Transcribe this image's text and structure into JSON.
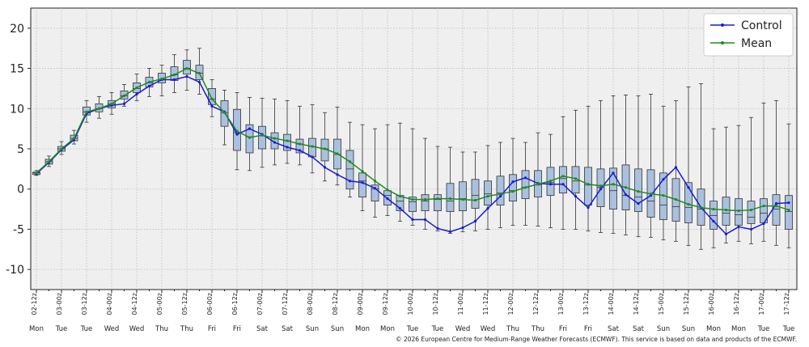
{
  "chart_data": {
    "type": "box",
    "categories": [
      "02-12z",
      null,
      "03-00z",
      null,
      "03-12z",
      null,
      "04-00z",
      null,
      "04-12z",
      null,
      "05-00z",
      null,
      "05-12z",
      null,
      "06-00z",
      null,
      "06-12z",
      null,
      "07-00z",
      null,
      "07-12z",
      null,
      "08-00z",
      null,
      "08-12z",
      null,
      "09-00z",
      null,
      "09-12z",
      null,
      "10-00z",
      null,
      "10-12z",
      null,
      "11-00z",
      null,
      "11-12z",
      null,
      "12-00z",
      null,
      "12-12z",
      null,
      "13-00z",
      null,
      "13-12z",
      null,
      "14-00z",
      null,
      "14-12z",
      null,
      "15-00z",
      null,
      "15-12z",
      null,
      "16-00z",
      null,
      "16-12z",
      null,
      "17-00z",
      null,
      "17-12z"
    ],
    "day_labels": [
      "Mon",
      null,
      "Tue",
      null,
      "Tue",
      null,
      "Wed",
      null,
      "Wed",
      null,
      "Thu",
      null,
      "Thu",
      null,
      "Fri",
      null,
      "Fri",
      null,
      "Sat",
      null,
      "Sat",
      null,
      "Sun",
      null,
      "Sun",
      null,
      "Mon",
      null,
      "Mon",
      null,
      "Tue",
      null,
      "Tue",
      null,
      "Wed",
      null,
      "Wed",
      null,
      "Thu",
      null,
      "Thu",
      null,
      "Fri",
      null,
      "Fri",
      null,
      "Sat",
      null,
      "Sat",
      null,
      "Sun",
      null,
      "Sun",
      null,
      "Mon",
      null,
      "Mon",
      null,
      "Tue",
      null,
      "Tue"
    ],
    "boxes": {
      "color": "#a9c1de",
      "low": [
        1.7,
        2.8,
        4.3,
        5.6,
        8.3,
        8.8,
        9.3,
        10.3,
        11.0,
        11.5,
        11.6,
        12.0,
        12.3,
        11.8,
        9.0,
        5.5,
        2.4,
        2.3,
        2.7,
        3.0,
        3.2,
        3.0,
        2.0,
        1.0,
        0.5,
        -1.0,
        -2.7,
        -3.5,
        -3.3,
        -4.0,
        -4.5,
        -5.0,
        -5.2,
        -5.5,
        -5.3,
        -5.2,
        -5.0,
        -4.8,
        -4.5,
        -4.5,
        -4.6,
        -4.8,
        -5.0,
        -5.0,
        -5.2,
        -5.4,
        -5.5,
        -5.7,
        -5.9,
        -6.0,
        -6.3,
        -6.5,
        -7.0,
        -7.5,
        -7.3,
        -6.7,
        -6.5,
        -6.8,
        -6.5,
        -7.0,
        -7.3
      ],
      "q1": [
        1.8,
        3.1,
        4.7,
        6.0,
        9.2,
        9.6,
        10.1,
        11.2,
        12.0,
        12.7,
        13.2,
        13.5,
        14.3,
        13.6,
        10.5,
        7.8,
        4.8,
        4.5,
        5.0,
        5.0,
        4.8,
        4.5,
        4.0,
        3.5,
        2.5,
        0.0,
        -1.0,
        -1.5,
        -2.0,
        -2.7,
        -2.8,
        -2.7,
        -2.7,
        -2.8,
        -2.7,
        -2.4,
        -2.0,
        -2.0,
        -1.5,
        -1.2,
        -1.0,
        -0.8,
        -0.5,
        -0.5,
        -2.0,
        -2.2,
        -2.5,
        -2.6,
        -2.8,
        -3.5,
        -3.8,
        -4.0,
        -4.2,
        -4.5,
        -5.0,
        -4.5,
        -4.5,
        -4.3,
        -4.2,
        -4.5,
        -5.0
      ],
      "median": [
        2.0,
        3.4,
        5.0,
        6.3,
        9.6,
        10.0,
        10.6,
        11.6,
        12.5,
        13.2,
        13.6,
        14.2,
        15.0,
        14.4,
        11.2,
        9.5,
        7.0,
        6.5,
        6.6,
        6.3,
        6.0,
        5.6,
        5.3,
        5.0,
        4.3,
        2.5,
        1.0,
        0.0,
        -0.8,
        -1.5,
        -1.6,
        -1.5,
        -1.3,
        -1.5,
        -1.2,
        -0.8,
        -0.6,
        -0.5,
        -0.2,
        0.2,
        0.5,
        0.8,
        1.3,
        1.0,
        0.5,
        0.2,
        -0.2,
        -0.8,
        -1.0,
        -1.5,
        -2.0,
        -2.2,
        -2.3,
        -2.5,
        -3.3,
        -3.0,
        -3.2,
        -3.5,
        -3.0,
        -2.5,
        -2.8
      ],
      "q3": [
        2.1,
        3.7,
        5.3,
        6.7,
        10.2,
        10.6,
        11.0,
        12.2,
        13.2,
        13.9,
        14.4,
        15.2,
        16.0,
        15.4,
        12.5,
        11.0,
        9.9,
        8.0,
        7.8,
        7.0,
        6.8,
        6.2,
        6.3,
        6.2,
        6.2,
        4.8,
        2.0,
        0.5,
        -0.2,
        -0.8,
        -1.0,
        -0.7,
        -0.7,
        0.7,
        0.9,
        1.2,
        1.0,
        1.6,
        1.8,
        2.3,
        2.3,
        2.7,
        2.8,
        2.8,
        2.7,
        2.5,
        2.6,
        3.0,
        2.5,
        2.4,
        2.0,
        1.3,
        0.8,
        0.0,
        -1.5,
        -1.0,
        -1.2,
        -1.5,
        -1.2,
        -0.7,
        -0.8
      ],
      "high": [
        2.3,
        4.1,
        5.9,
        7.3,
        11.0,
        11.5,
        12.0,
        13.0,
        14.3,
        15.0,
        15.4,
        16.7,
        17.3,
        17.5,
        13.6,
        12.3,
        12.0,
        11.4,
        11.3,
        11.2,
        11.0,
        10.3,
        10.5,
        9.5,
        10.2,
        8.3,
        8.0,
        7.5,
        8.0,
        8.2,
        7.5,
        6.3,
        5.3,
        5.2,
        4.6,
        4.6,
        5.4,
        5.8,
        6.3,
        5.8,
        7.0,
        6.8,
        9.0,
        9.8,
        10.3,
        11.0,
        11.6,
        11.7,
        11.6,
        11.8,
        10.3,
        11.0,
        12.7,
        13.1,
        7.5,
        7.7,
        7.9,
        8.9,
        10.7,
        11.0,
        8.1
      ]
    },
    "series": [
      {
        "name": "Control",
        "color": "#1a1adb",
        "values": [
          1.9,
          3.3,
          4.9,
          6.1,
          9.4,
          10.0,
          10.4,
          10.6,
          11.8,
          12.8,
          13.6,
          13.6,
          14.0,
          13.3,
          10.3,
          9.6,
          6.8,
          7.5,
          6.8,
          5.8,
          5.2,
          4.8,
          4.0,
          2.7,
          1.8,
          1.0,
          0.8,
          0.1,
          -1.2,
          -2.4,
          -3.8,
          -3.8,
          -4.9,
          -5.3,
          -4.8,
          -4.0,
          -2.4,
          -0.9,
          0.9,
          1.4,
          0.7,
          0.6,
          0.6,
          -0.9,
          -2.3,
          0.0,
          2.0,
          -0.7,
          -1.8,
          -0.8,
          1.2,
          2.7,
          0.2,
          -2.3,
          -4.0,
          -5.6,
          -4.7,
          -5.0,
          -4.3,
          -1.8,
          -1.7
        ]
      },
      {
        "name": "Mean",
        "color": "#1e8c1e",
        "values": [
          2.0,
          3.4,
          5.0,
          6.3,
          9.6,
          10.0,
          10.6,
          11.6,
          12.6,
          13.3,
          13.7,
          14.2,
          15.0,
          14.4,
          11.2,
          9.5,
          7.2,
          6.4,
          6.7,
          6.3,
          6.0,
          5.6,
          5.3,
          5.0,
          4.4,
          3.4,
          2.2,
          1.0,
          -0.1,
          -0.9,
          -1.3,
          -1.3,
          -1.2,
          -1.2,
          -1.3,
          -1.4,
          -0.9,
          -0.6,
          -0.3,
          0.2,
          0.6,
          1.0,
          1.6,
          1.3,
          0.6,
          0.4,
          0.6,
          0.2,
          -0.3,
          -0.6,
          -0.8,
          -1.3,
          -1.9,
          -2.3,
          -2.5,
          -2.6,
          -2.7,
          -2.6,
          -2.1,
          -2.1,
          -2.6
        ]
      }
    ],
    "ylim": [
      -12.5,
      22.5
    ],
    "yticks": [
      -10,
      -5,
      0,
      5,
      10,
      15,
      20
    ],
    "grid": true,
    "legend": "upper right",
    "footer": "© 2026 European Centre for Medium-Range Weather Forecasts (ECMWF). This service is based on data and products of the ECMWF."
  }
}
